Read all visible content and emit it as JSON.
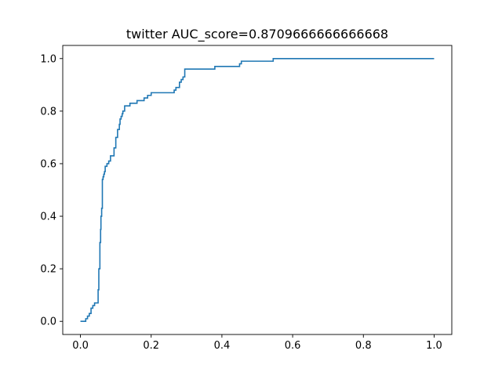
{
  "chart_data": {
    "type": "line",
    "title": "twitter AUC_score=0.8709666666666668",
    "xlabel": "",
    "ylabel": "",
    "xlim": [
      -0.05,
      1.05
    ],
    "ylim": [
      -0.05,
      1.05
    ],
    "xticks": [
      0.0,
      0.2,
      0.4,
      0.6,
      0.8,
      1.0
    ],
    "xtick_labels": [
      "0.0",
      "0.2",
      "0.4",
      "0.6",
      "0.8",
      "1.0"
    ],
    "yticks": [
      0.0,
      0.2,
      0.4,
      0.6,
      0.8,
      1.0
    ],
    "ytick_labels": [
      "0.0",
      "0.2",
      "0.4",
      "0.6",
      "0.8",
      "1.0"
    ],
    "grid": false,
    "legend": "none",
    "colors": {
      "series": "#1f77b4",
      "axes": "#000000",
      "background": "#ffffff"
    },
    "series": [
      {
        "x": [
          0.0,
          0.015,
          0.015,
          0.02,
          0.02,
          0.025,
          0.025,
          0.03,
          0.03,
          0.035,
          0.035,
          0.04,
          0.04,
          0.05,
          0.05,
          0.052,
          0.052,
          0.055,
          0.055,
          0.057,
          0.057,
          0.058,
          0.058,
          0.06,
          0.06,
          0.062,
          0.062,
          0.064,
          0.064,
          0.066,
          0.066,
          0.068,
          0.068,
          0.07,
          0.07,
          0.075,
          0.075,
          0.08,
          0.08,
          0.085,
          0.085,
          0.095,
          0.095,
          0.1,
          0.1,
          0.105,
          0.105,
          0.11,
          0.11,
          0.112,
          0.112,
          0.115,
          0.115,
          0.118,
          0.118,
          0.12,
          0.12,
          0.125,
          0.125,
          0.14,
          0.14,
          0.16,
          0.16,
          0.18,
          0.18,
          0.19,
          0.19,
          0.2,
          0.2,
          0.265,
          0.265,
          0.27,
          0.27,
          0.28,
          0.28,
          0.285,
          0.285,
          0.29,
          0.29,
          0.295,
          0.295,
          0.38,
          0.38,
          0.45,
          0.45,
          0.455,
          0.455,
          0.545,
          0.545,
          0.6,
          0.6,
          0.61,
          0.61,
          0.88,
          0.88,
          1.0
        ],
        "y": [
          0.0,
          0.0,
          0.01,
          0.01,
          0.02,
          0.02,
          0.03,
          0.03,
          0.05,
          0.05,
          0.06,
          0.06,
          0.07,
          0.07,
          0.12,
          0.12,
          0.2,
          0.2,
          0.3,
          0.3,
          0.35,
          0.35,
          0.4,
          0.4,
          0.43,
          0.43,
          0.54,
          0.54,
          0.55,
          0.55,
          0.56,
          0.56,
          0.57,
          0.57,
          0.59,
          0.59,
          0.6,
          0.6,
          0.61,
          0.61,
          0.63,
          0.63,
          0.66,
          0.66,
          0.7,
          0.7,
          0.73,
          0.73,
          0.75,
          0.75,
          0.77,
          0.77,
          0.78,
          0.78,
          0.79,
          0.79,
          0.8,
          0.8,
          0.82,
          0.82,
          0.83,
          0.83,
          0.84,
          0.84,
          0.85,
          0.85,
          0.86,
          0.86,
          0.87,
          0.87,
          0.88,
          0.88,
          0.89,
          0.89,
          0.91,
          0.91,
          0.92,
          0.92,
          0.93,
          0.93,
          0.96,
          0.96,
          0.97,
          0.97,
          0.98,
          0.98,
          0.99,
          0.99,
          1.0,
          1.0,
          1.0,
          1.0,
          1.0,
          1.0,
          1.0,
          1.0
        ]
      }
    ]
  }
}
